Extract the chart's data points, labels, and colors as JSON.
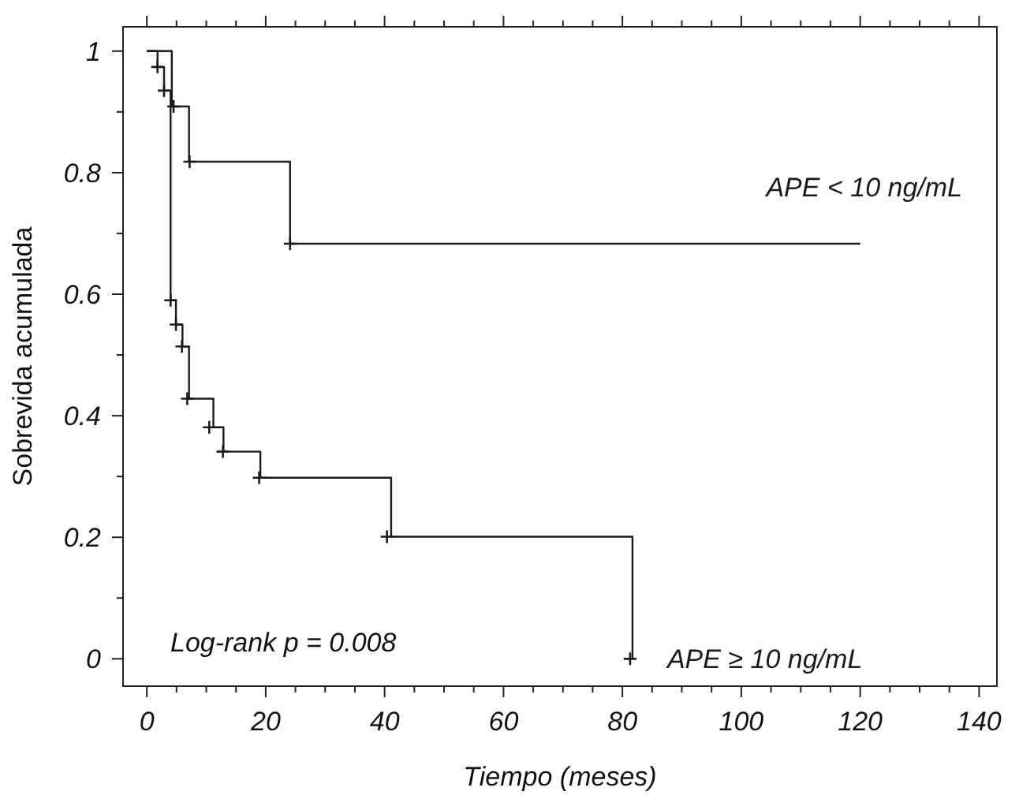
{
  "chart_data": {
    "type": "step",
    "xlabel": "Tiempo (meses)",
    "ylabel": "Sobrevida acumulada",
    "xlim": [
      -4,
      143
    ],
    "ylim": [
      -0.045,
      1.04
    ],
    "xticks": [
      0,
      {
        "value": 5,
        "label": null
      },
      {
        "value": 10,
        "label": null
      },
      {
        "value": 15,
        "label": null
      },
      20,
      {
        "value": 25,
        "label": null
      },
      {
        "value": 30,
        "label": null
      },
      {
        "value": 35,
        "label": null
      },
      40,
      {
        "value": 45,
        "label": null
      },
      {
        "value": 50,
        "label": null
      },
      {
        "value": 55,
        "label": null
      },
      60,
      {
        "value": 65,
        "label": null
      },
      {
        "value": 70,
        "label": null
      },
      {
        "value": 75,
        "label": null
      },
      80,
      {
        "value": 85,
        "label": null
      },
      {
        "value": 90,
        "label": null
      },
      {
        "value": 95,
        "label": null
      },
      100,
      {
        "value": 105,
        "label": null
      },
      {
        "value": 110,
        "label": null
      },
      {
        "value": 115,
        "label": null
      },
      120,
      {
        "value": 125,
        "label": null
      },
      {
        "value": 130,
        "label": null
      },
      {
        "value": 135,
        "label": null
      },
      140
    ],
    "yticks": [
      0,
      {
        "value": 0.1,
        "label": null
      },
      0.2,
      {
        "value": 0.3,
        "label": null
      },
      0.4,
      {
        "value": 0.5,
        "label": null
      },
      0.6,
      {
        "value": 0.7,
        "label": null
      },
      0.8,
      {
        "value": 0.9,
        "label": null
      },
      1
    ],
    "grid": false,
    "line_style": "solid",
    "series": [
      {
        "name": "APE < 10 ng/mL",
        "color": "#1a1a1a",
        "marker": "none",
        "x": [
          0,
          4.2,
          7.1,
          24.1,
          120
        ],
        "values": [
          1,
          0.909,
          0.818,
          0.683,
          0.683
        ]
      },
      {
        "name": "APE ≥ 10 ng/mL",
        "color": "#1a1a1a",
        "marker": "none",
        "x": [
          0,
          1.8,
          2.9,
          4.0,
          4.9,
          6.0,
          7.1,
          11.2,
          12.9,
          19.1,
          41.1,
          81.7
        ],
        "values": [
          1,
          0.974,
          0.935,
          0.59,
          0.55,
          0.514,
          0.428,
          0.381,
          0.341,
          0.298,
          0.201,
          0
        ]
      },
      {
        "type": "scatter",
        "color": "#1a1a1a",
        "marker": "cross",
        "x": [
          4.5,
          7.2,
          24.1
        ],
        "values": [
          0.909,
          0.818,
          0.683
        ]
      },
      {
        "type": "scatter",
        "color": "#1a1a1a",
        "marker": "cross",
        "x": [
          1.8,
          2.9,
          4.0,
          4.9,
          5.9,
          6.8,
          10.5,
          12.8,
          18.9,
          40.4,
          81.3
        ],
        "values": [
          0.974,
          0.935,
          0.59,
          0.55,
          0.514,
          0.428,
          0.381,
          0.341,
          0.298,
          0.201,
          0
        ]
      }
    ],
    "annotations": [
      "Log-rank p = 0.008"
    ]
  }
}
